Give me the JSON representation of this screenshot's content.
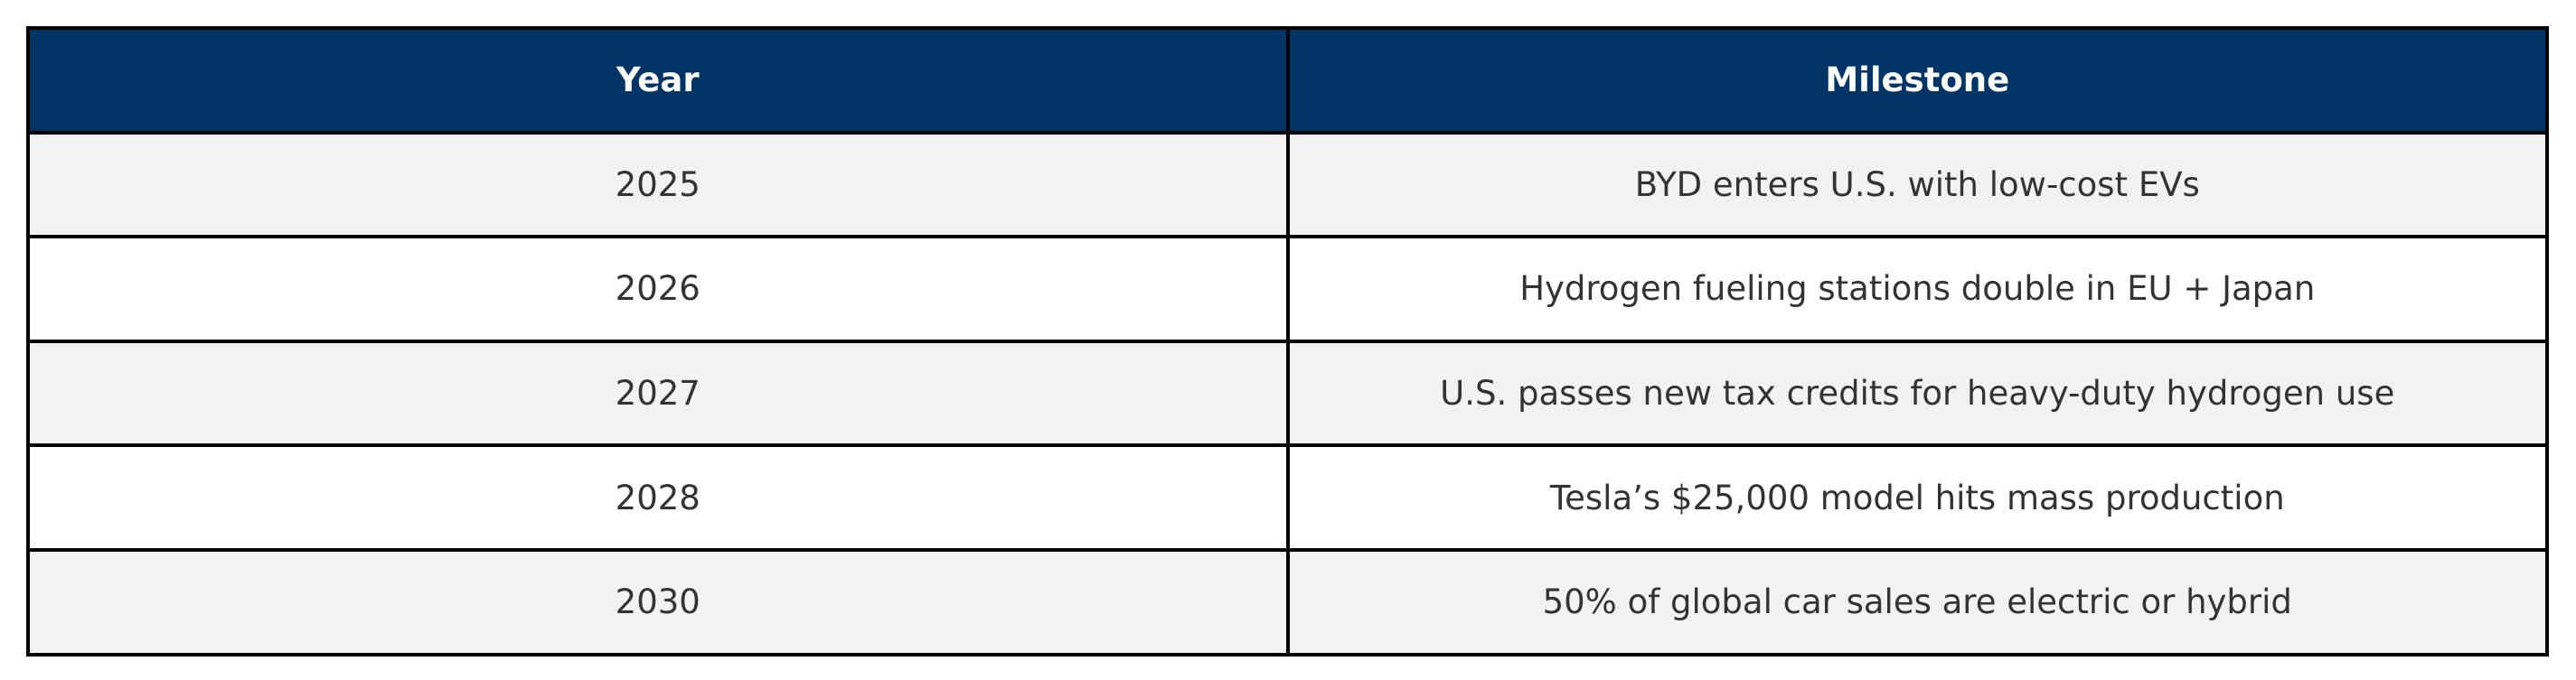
{
  "table": {
    "header": [
      "Year",
      "Milestone"
    ],
    "rows": [
      [
        "2025",
        "BYD enters U.S. with low-cost EVs"
      ],
      [
        "2026",
        "Hydrogen fueling stations double in EU + Japan"
      ],
      [
        "2027",
        "U.S. passes new tax credits for heavy-duty hydrogen use"
      ],
      [
        "2028",
        "Tesla’s $25,000 model hits mass production"
      ],
      [
        "2030",
        "50% of global car sales are electric or hybrid"
      ]
    ]
  }
}
